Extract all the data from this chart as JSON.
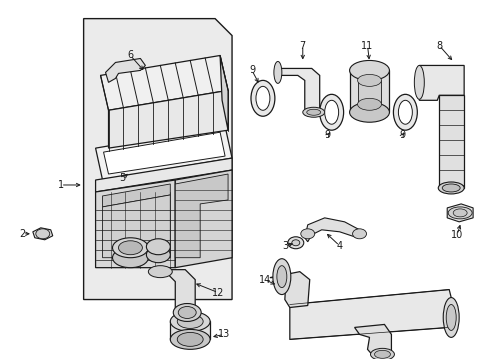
{
  "background_color": "#ffffff",
  "figure_width": 4.89,
  "figure_height": 3.6,
  "dpi": 100,
  "line_color": "#1a1a1a",
  "fill_light": "#e8e8e8",
  "fill_mid": "#d4d4d4",
  "fill_dark": "#c0c0c0",
  "label_fontsize": 7.0
}
